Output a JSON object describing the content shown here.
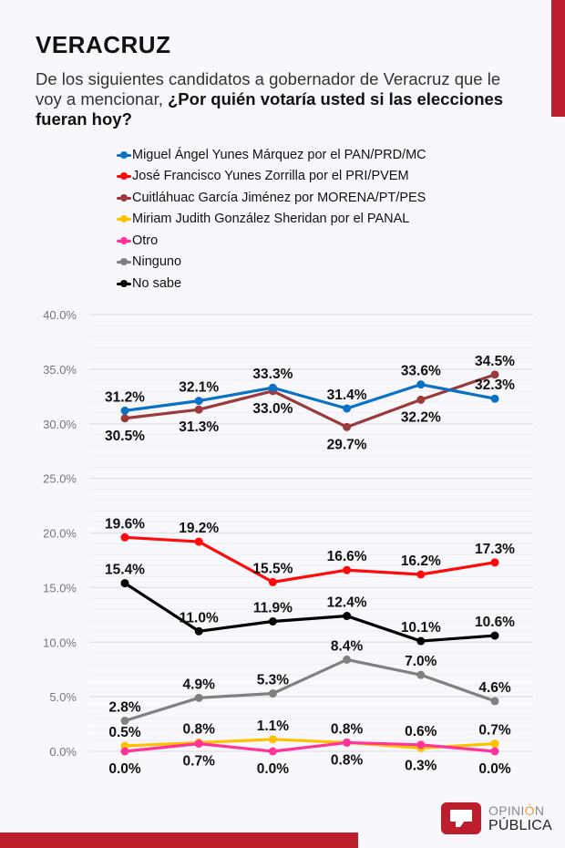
{
  "header": {
    "title": "VERACRUZ",
    "question_plain": "De los siguientes candidatos a gobernador de Veracruz que le voy a mencionar, ",
    "question_bold": "¿Por quién votaría usted si las elecciones fueran hoy?"
  },
  "brand": {
    "accent_color": "#bc1e2d",
    "logo_line1_a": "OPINI",
    "logo_line1_b": "Ó",
    "logo_line1_c": "N",
    "logo_line2": "PÚBLICA"
  },
  "chart_data": {
    "type": "line",
    "title": "",
    "xlabel": "",
    "ylabel": "",
    "x": [
      1,
      2,
      3,
      4,
      5,
      6
    ],
    "x_tick_labels_visible": false,
    "ylim": [
      0,
      40
    ],
    "y_ticks": [
      "0.0%",
      "5.0%",
      "10.0%",
      "15.0%",
      "20.0%",
      "25.0%",
      "30.0%",
      "35.0%",
      "40.0%"
    ],
    "grid": true,
    "legend_position": "top",
    "series": [
      {
        "name": "Miguel Ángel Yunes Márquez por el PAN/PRD/MC",
        "color": "#0a72c4",
        "values": [
          31.2,
          32.1,
          33.3,
          31.4,
          33.6,
          32.3
        ],
        "label_pos": [
          "above",
          "above",
          "above",
          "above",
          "above",
          "above"
        ]
      },
      {
        "name": "José Francisco Yunes Zorrilla por el PRI/PVEM",
        "color": "#ff0a0a",
        "values": [
          19.6,
          19.2,
          15.5,
          16.6,
          16.2,
          17.3
        ],
        "label_pos": [
          "above",
          "above",
          "above",
          "above",
          "above",
          "above"
        ]
      },
      {
        "name": "Cuitláhuac García Jiménez por MORENA/PT/PES",
        "color": "#9b3a3a",
        "values": [
          30.5,
          31.3,
          33.0,
          29.7,
          32.2,
          34.5
        ],
        "label_pos": [
          "below",
          "below",
          "below",
          "below",
          "below",
          "above"
        ]
      },
      {
        "name": "Miriam Judith González Sheridan por el PANAL",
        "color": "#ffc000",
        "values": [
          0.5,
          0.8,
          1.1,
          0.8,
          0.3,
          0.7
        ],
        "label_pos": [
          "above",
          "above",
          "above",
          "above",
          "below",
          "above"
        ]
      },
      {
        "name": "Otro",
        "color": "#ff3399",
        "values": [
          0.0,
          0.7,
          0.0,
          0.8,
          0.6,
          0.0
        ],
        "label_pos": [
          "below",
          "below",
          "below",
          "below",
          "above",
          "below"
        ]
      },
      {
        "name": "Ninguno",
        "color": "#808080",
        "values": [
          2.8,
          4.9,
          5.3,
          8.4,
          7.0,
          4.6
        ],
        "label_pos": [
          "above",
          "above",
          "above",
          "above",
          "above",
          "above"
        ]
      },
      {
        "name": "No sabe",
        "color": "#000000",
        "values": [
          15.4,
          11.0,
          11.9,
          12.4,
          10.1,
          10.6
        ],
        "label_pos": [
          "above",
          "above",
          "above",
          "above",
          "above",
          "above"
        ]
      }
    ]
  }
}
